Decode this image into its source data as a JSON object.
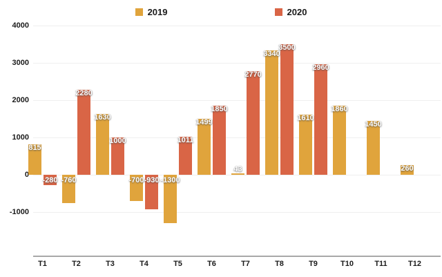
{
  "chart_data": {
    "type": "bar",
    "title": "",
    "categories": [
      "T1",
      "T2",
      "T3",
      "T4",
      "T5",
      "T6",
      "T7",
      "T8",
      "T9",
      "T10",
      "T11",
      "T12"
    ],
    "series": [
      {
        "name": "2019",
        "color": "#E0A43C",
        "values": [
          815,
          -760,
          1630,
          -700,
          -1300,
          1499,
          43,
          3340,
          1610,
          1860,
          1450,
          260
        ]
      },
      {
        "name": "2020",
        "color": "#D96546",
        "values": [
          -280,
          2280,
          1000,
          -930,
          1011,
          1850,
          2770,
          3500,
          2960,
          null,
          null,
          null
        ]
      }
    ],
    "yticks": [
      4000,
      3000,
      2000,
      1000,
      0,
      -1000
    ],
    "ylim": [
      -2200,
      4000
    ],
    "grid": true,
    "legend_position": "top",
    "bar_labels": true
  },
  "colors": {
    "background": "#FFFFFF",
    "grid": "#EFEFEF",
    "baseline": "#A8A8A8",
    "axis_text": "#1A1A1A",
    "bar_label_text": "#FFFFFF"
  }
}
